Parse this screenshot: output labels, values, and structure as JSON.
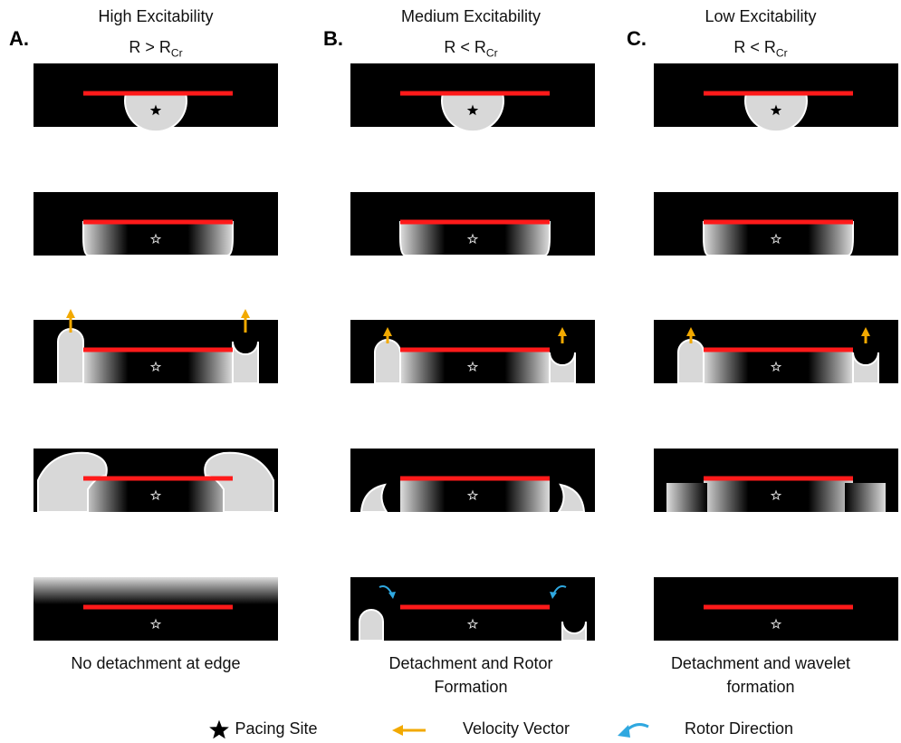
{
  "columns": [
    {
      "letter": "A.",
      "title": "High Excitability",
      "condition": {
        "main": "R > R",
        "subscript": "Cr"
      },
      "caption": [
        "No detachment at edge"
      ]
    },
    {
      "letter": "B.",
      "title": "Medium Excitability",
      "condition": {
        "main": "R < R",
        "subscript": "Cr"
      },
      "caption": [
        "Detachment and Rotor",
        "Formation"
      ]
    },
    {
      "letter": "C.",
      "title": "Low Excitability",
      "condition": {
        "main": "R < R",
        "subscript": "Cr"
      },
      "caption": [
        "Detachment and wavelet",
        "formation"
      ]
    }
  ],
  "legend": {
    "pacing_site": "Pacing Site",
    "velocity_vector": "Velocity Vector",
    "rotor_direction": "Rotor Direction"
  }
}
